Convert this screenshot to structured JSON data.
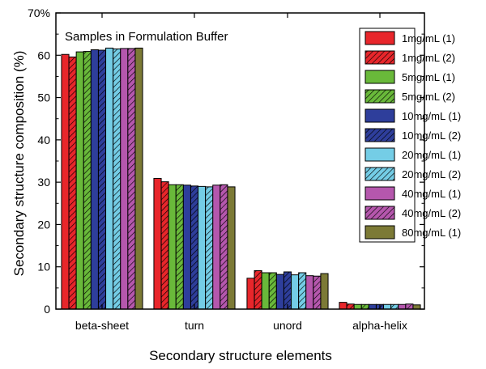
{
  "chart_data": {
    "type": "bar",
    "title": "Samples in Formulation Buffer",
    "xlabel": "Secondary structure elements",
    "ylabel": "Secondary structure composition (%)",
    "ylim": [
      0,
      70
    ],
    "yticks": [
      0,
      10,
      20,
      30,
      40,
      50,
      60,
      70
    ],
    "ytick_labels": [
      "0",
      "10",
      "20",
      "30",
      "40",
      "50",
      "60",
      "70%"
    ],
    "categories": [
      "beta-sheet",
      "turn",
      "unord",
      "alpha-helix"
    ],
    "legend_position": "top-right",
    "series": [
      {
        "name": "1mg/mL (1)",
        "color": "#e8262b",
        "hatched": false,
        "values": [
          60.2,
          30.9,
          7.3,
          1.6
        ]
      },
      {
        "name": "1mg/mL (2)",
        "color": "#e8262b",
        "hatched": true,
        "values": [
          59.6,
          30.1,
          9.1,
          1.2
        ]
      },
      {
        "name": "5mg/mL (1)",
        "color": "#69b93a",
        "hatched": false,
        "values": [
          60.8,
          29.4,
          8.6,
          1.1
        ]
      },
      {
        "name": "5mg/mL (2)",
        "color": "#69b93a",
        "hatched": true,
        "values": [
          60.9,
          29.4,
          8.6,
          1.1
        ]
      },
      {
        "name": "10mg/mL (1)",
        "color": "#2e3e9b",
        "hatched": false,
        "values": [
          61.3,
          29.3,
          8.2,
          1.1
        ]
      },
      {
        "name": "10mg/mL (2)",
        "color": "#2e3e9b",
        "hatched": true,
        "values": [
          61.2,
          29.1,
          8.8,
          1.1
        ]
      },
      {
        "name": "20mg/mL (1)",
        "color": "#74cde6",
        "hatched": false,
        "values": [
          61.7,
          29.0,
          8.1,
          1.1
        ]
      },
      {
        "name": "20mg/mL (2)",
        "color": "#74cde6",
        "hatched": true,
        "values": [
          61.5,
          28.9,
          8.6,
          1.1
        ]
      },
      {
        "name": "40mg/mL (1)",
        "color": "#b557ad",
        "hatched": false,
        "values": [
          61.6,
          29.3,
          7.9,
          1.1
        ]
      },
      {
        "name": "40mg/mL (2)",
        "color": "#b557ad",
        "hatched": true,
        "values": [
          61.6,
          29.4,
          7.8,
          1.2
        ]
      },
      {
        "name": "80mg/mL (1)",
        "color": "#7c7a36",
        "hatched": false,
        "values": [
          61.7,
          28.9,
          8.4,
          1.0
        ]
      }
    ]
  }
}
